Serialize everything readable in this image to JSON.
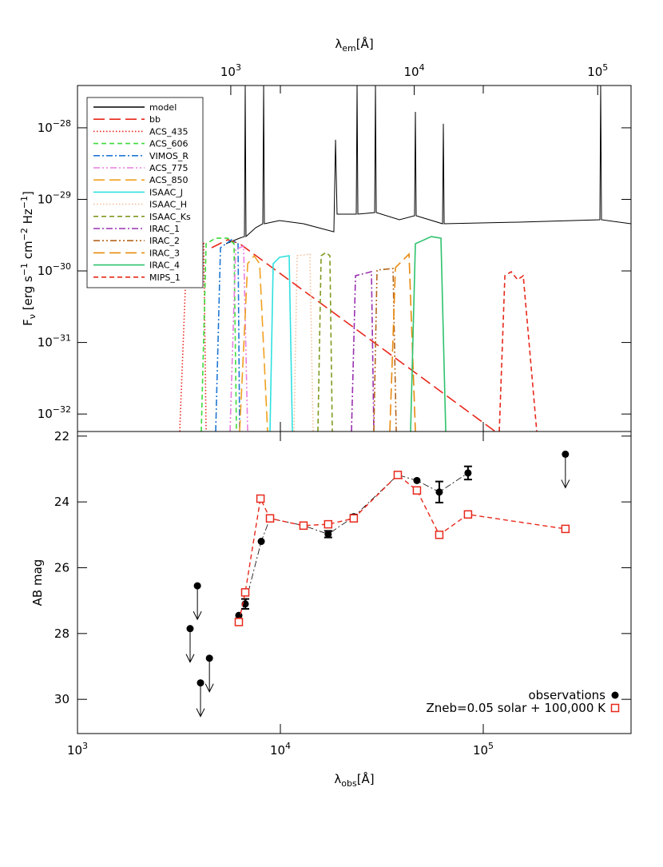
{
  "chart_data": [
    {
      "type": "line",
      "xscale": "log",
      "yscale": "log",
      "xlim": [
        1000,
        535000
      ],
      "ylim": [
        5.7e-33,
        3.9e-28
      ],
      "yticks": [
        {
          "value": 1e-28,
          "label": "10",
          "sup": "−28"
        },
        {
          "value": 1e-29,
          "label": "10",
          "sup": "−29"
        },
        {
          "value": 1e-30,
          "label": "10",
          "sup": "−30"
        },
        {
          "value": 1e-31,
          "label": "10",
          "sup": "−31"
        },
        {
          "value": 1e-32,
          "label": "10",
          "sup": "−32"
        }
      ],
      "x2lim": [
        146,
        152000
      ],
      "x2ticks": [
        {
          "value": 1000,
          "label": "10",
          "sup": "3"
        },
        {
          "value": 10000,
          "label": "10",
          "sup": "4"
        },
        {
          "value": 100000,
          "label": "10",
          "sup": "5"
        }
      ],
      "x2label": [
        {
          "text": "λ"
        },
        {
          "sub": "em"
        },
        {
          "text": "[Å]"
        }
      ],
      "ylabel": [
        {
          "text": "F"
        },
        {
          "sub": "ν"
        },
        {
          "text": " [erg s"
        },
        {
          "sup": "−1"
        },
        {
          "text": " cm"
        },
        {
          "sup": "−2"
        },
        {
          "text": " Hz"
        },
        {
          "sup": "−1"
        },
        {
          "text": "]"
        }
      ],
      "legend": "upper left",
      "series": [
        {
          "name": "model",
          "color": "#000000",
          "linestyle": "solid",
          "x": [
            5400,
            6300,
            6650,
            6710,
            6770,
            7550,
            8190,
            8270,
            8340,
            9910,
            13000,
            18350,
            18700,
            19030,
            23660,
            23880,
            24100,
            29150,
            29420,
            29690,
            38600,
            45850,
            46280,
            46700,
            63000,
            63570,
            64150,
            150400,
            375600,
            379000,
            382500,
            535000
          ],
          "values": [
            2.4e-30,
            2.87e-30,
            3.02e-30,
            3.9e-28,
            3.02e-30,
            4.01e-30,
            4.56e-30,
            3.9e-28,
            4.56e-30,
            5.06e-30,
            4.56e-30,
            3.52e-30,
            6.8e-29,
            6.21e-30,
            6.21e-30,
            3.9e-28,
            6.21e-30,
            6.54e-30,
            3.9e-28,
            6.54e-30,
            5.19e-30,
            5.9e-30,
            1.67e-28,
            5.9e-30,
            4.56e-30,
            1.14e-28,
            4.56e-30,
            4.81e-30,
            5.19e-30,
            3.9e-28,
            5.19e-30,
            4.56e-30
          ]
        },
        {
          "name": "bb",
          "color": "#e8281b",
          "linestyle": "longdash",
          "x": [
            4585,
            5500,
            6300,
            114600
          ],
          "values": [
            2.11e-30,
            2.73e-30,
            2.4e-30,
            5.7e-33
          ]
        },
        {
          "name": "ACS_435",
          "color": "#e8261b",
          "linestyle": "dotted",
          "x": [
            3191,
            3401,
            3825,
            4188,
            4305
          ],
          "values": [
            5.7e-33,
            5.82e-31,
            1.85e-30,
            2.4e-30,
            5.7e-33
          ]
        },
        {
          "name": "ACS_606",
          "color": "#3ddc3d",
          "linestyle": "dashed",
          "x": [
            4075,
            4305,
            4800,
            5500,
            5910,
            6074
          ],
          "values": [
            5.7e-33,
            2.4e-30,
            2.87e-30,
            2.87e-30,
            2.4e-30,
            5.7e-33
          ]
        },
        {
          "name": "VIMOS_R",
          "color": "#1f77d4",
          "linestyle": "dashdot",
          "x": [
            4800,
            5068,
            5752,
            6185,
            6298
          ],
          "values": [
            5.7e-33,
            2.11e-30,
            2.73e-30,
            2.4e-30,
            5.7e-33
          ]
        },
        {
          "name": "ACS_775",
          "color": "#e97ee0",
          "linestyle": "dashdotdot",
          "x": [
            5649,
            6020,
            6591,
            6898
          ],
          "values": [
            5.7e-33,
            2e-30,
            2.22e-30,
            5.7e-33
          ]
        },
        {
          "name": "ACS_850",
          "color": "#f0a020",
          "linestyle": "longdash",
          "x": [
            6298,
            6898,
            7418,
            7902,
            8650
          ],
          "values": [
            5.7e-33,
            1.26e-30,
            1.63e-30,
            1.26e-30,
            5.7e-33
          ]
        },
        {
          "name": "ISAAC_J",
          "color": "#30e0e0",
          "linestyle": "solid",
          "x": [
            8889,
            9216,
            9910,
            11050,
            11460
          ],
          "values": [
            5.7e-33,
            1.26e-30,
            1.55e-30,
            1.63e-30,
            5.7e-33
          ]
        },
        {
          "name": "ISAAC_H",
          "color": "#f4c09a",
          "linestyle": "dotted",
          "x": [
            11670,
            12100,
            13980,
            14500
          ],
          "values": [
            5.7e-33,
            1.63e-30,
            1.72e-30,
            5.7e-33
          ]
        },
        {
          "name": "ISAAC_Ks",
          "color": "#7f9a20",
          "linestyle": "dashed",
          "x": [
            15310,
            15880,
            16770,
            17540,
            18030
          ],
          "values": [
            5.7e-33,
            1.63e-30,
            1.81e-30,
            1.63e-30,
            5.7e-33
          ]
        },
        {
          "name": "IRAC_1",
          "color": "#9a30b0",
          "linestyle": "dashdot",
          "x": [
            22410,
            23460,
            28110,
            28880
          ],
          "values": [
            5.7e-33,
            8.57e-31,
            9.75e-31,
            5.7e-33
          ]
        },
        {
          "name": "IRAC_2",
          "color": "#b5651d",
          "linestyle": "dashdotdot",
          "x": [
            28880,
            29950,
            35910,
            37240
          ],
          "values": [
            5.7e-33,
            1.03e-30,
            1.08e-30,
            5.7e-33
          ]
        },
        {
          "name": "IRAC_3",
          "color": "#e88a10",
          "linestyle": "longdash",
          "x": [
            34630,
            36900,
            43050,
            46280
          ],
          "values": [
            5.7e-33,
            1.11e-30,
            1.72e-30,
            5.7e-33
          ]
        },
        {
          "name": "IRAC_4",
          "color": "#2ec26e",
          "linestyle": "solid",
          "x": [
            43830,
            46280,
            55480,
            61850,
            65320
          ],
          "values": [
            5.7e-33,
            2.4e-30,
            3.02e-30,
            2.87e-30,
            5.7e-33
          ]
        },
        {
          "name": "MIPS_1",
          "color": "#e8281b",
          "linestyle": "dashed",
          "x": [
            119900,
            127800,
            137300,
            147700,
            157400,
            183500
          ],
          "values": [
            5.7e-33,
            8.57e-31,
            9.75e-31,
            7.53e-31,
            8.57e-31,
            5.7e-33
          ]
        }
      ]
    },
    {
      "type": "scatter",
      "xscale": "log",
      "xlim": [
        1000,
        535000
      ],
      "ylim": [
        31.04,
        21.86
      ],
      "xticks": [
        {
          "value": 1000,
          "label": "10",
          "sup": "3"
        },
        {
          "value": 10000,
          "label": "10",
          "sup": "4"
        },
        {
          "value": 100000,
          "label": "10",
          "sup": "5"
        }
      ],
      "yticks": [
        22,
        24,
        26,
        28,
        30
      ],
      "xlabel": [
        {
          "text": "λ"
        },
        {
          "sub": "obs"
        },
        {
          "text": "[Å]"
        }
      ],
      "ylabel": "AB mag",
      "legend": "lower right",
      "series": [
        {
          "name": "observations",
          "color": "#000000",
          "marker": "circle",
          "linestyle": "dashdot",
          "x": [
            6240,
            6710,
            8050,
            8890,
            13000,
            17200,
            23000,
            37900,
            47100,
            60700,
            84100
          ],
          "values": [
            27.45,
            27.1,
            25.2,
            24.5,
            24.72,
            24.98,
            24.45,
            23.18,
            23.35,
            23.7,
            23.12
          ],
          "errors": [
            null,
            0.15,
            null,
            null,
            0.06,
            0.1,
            0.06,
            null,
            null,
            0.32,
            0.2
          ]
        },
        {
          "color": "#000000",
          "marker": "upper-limit",
          "x": [
            3590,
            3900,
            4040,
            4470,
            254000
          ],
          "values": [
            27.85,
            26.55,
            29.5,
            28.75,
            22.55
          ]
        },
        {
          "name": "Zneb=0.05 solar + 100,000 K",
          "color": "#e8281b",
          "marker": "square",
          "linestyle": "dashed",
          "x": [
            6240,
            6710,
            7980,
            8890,
            13000,
            17200,
            23000,
            37900,
            47100,
            60700,
            84100,
            254000
          ],
          "values": [
            27.65,
            26.75,
            23.9,
            24.5,
            24.72,
            24.68,
            24.5,
            23.18,
            23.65,
            25.0,
            24.38,
            24.82
          ]
        }
      ]
    }
  ]
}
